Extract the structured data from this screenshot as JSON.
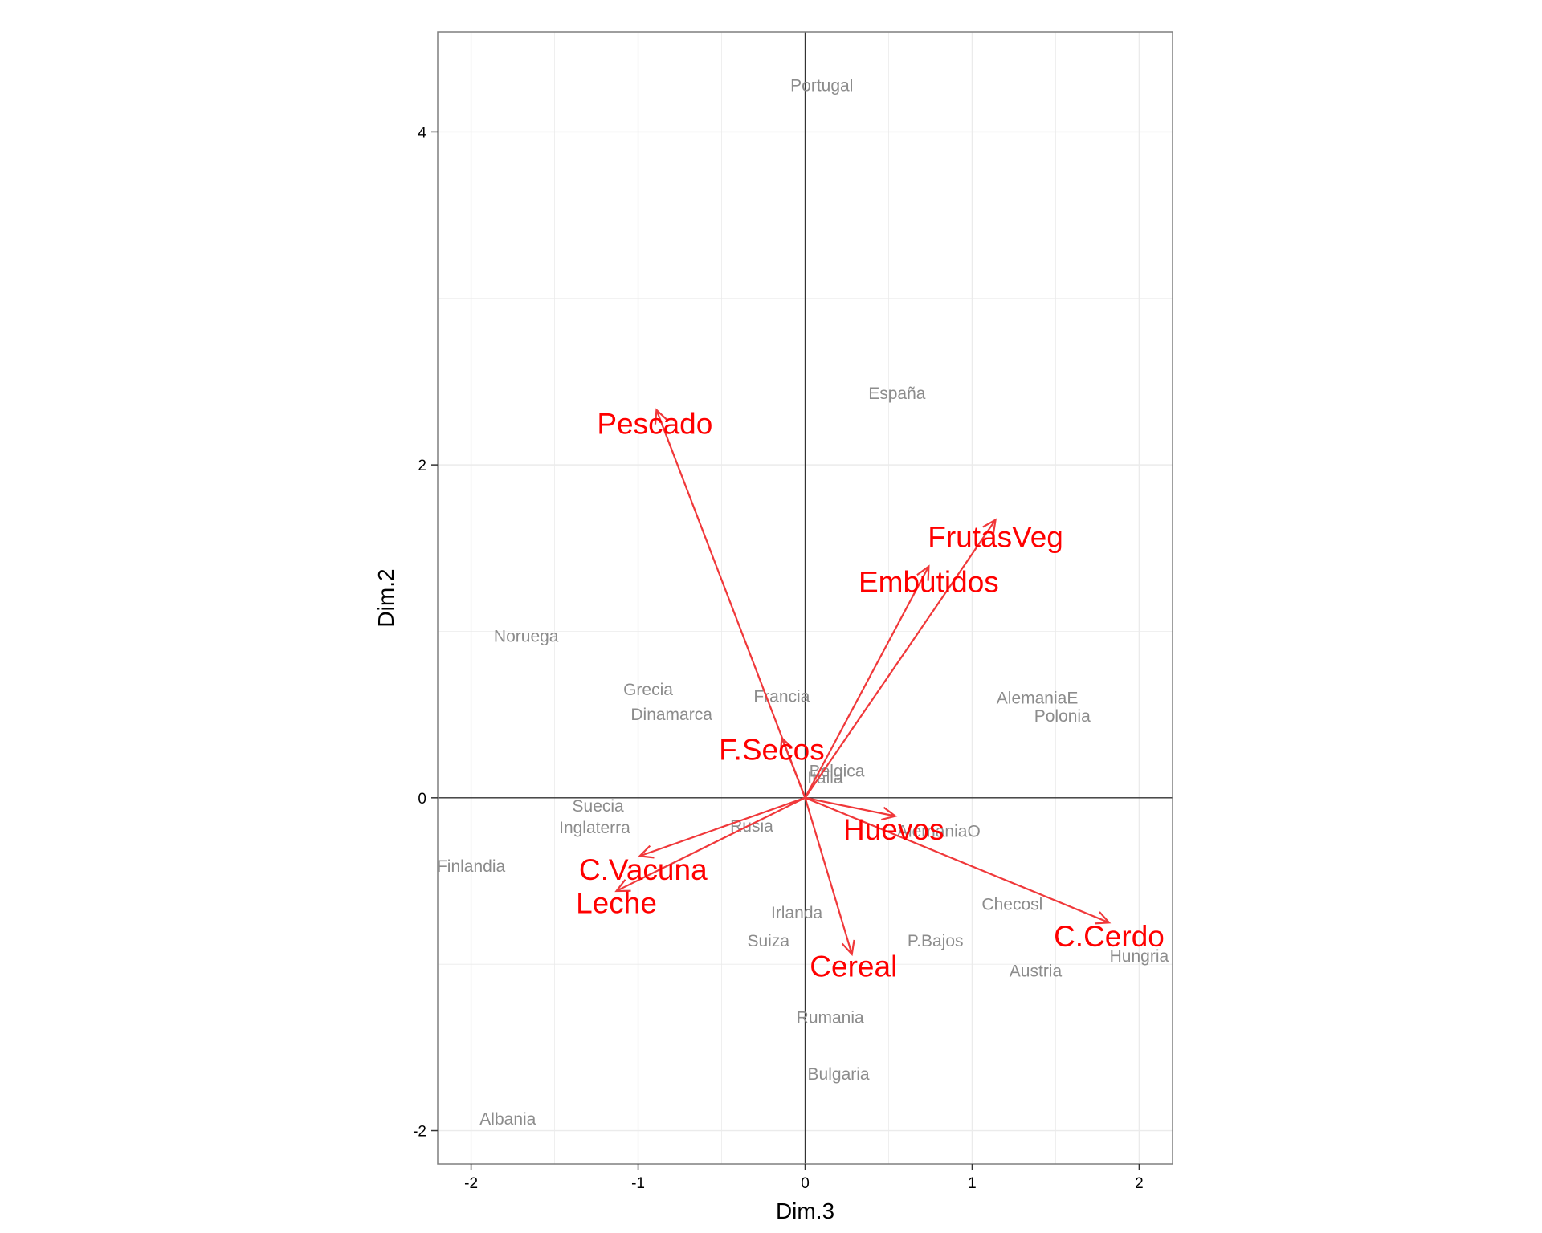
{
  "chart_data": {
    "type": "scatter",
    "xlabel": "Dim.3",
    "ylabel": "Dim.2",
    "xlim": [
      -2.2,
      2.2
    ],
    "ylim": [
      -2.2,
      4.6
    ],
    "x_ticks": [
      -2,
      -1,
      0,
      1,
      2
    ],
    "y_ticks": [
      -2,
      0,
      2,
      4
    ],
    "x_tick_labels": [
      "-2",
      "-1",
      "0",
      "1",
      "2"
    ],
    "y_tick_labels": [
      "-2",
      "0",
      "2",
      "4"
    ],
    "grid": true,
    "individuals": [
      {
        "label": "Portugal",
        "x": 0.1,
        "y": 4.28
      },
      {
        "label": "España",
        "x": 0.55,
        "y": 2.43
      },
      {
        "label": "Noruega",
        "x": -1.67,
        "y": 0.97
      },
      {
        "label": "Grecia",
        "x": -0.94,
        "y": 0.65
      },
      {
        "label": "Dinamarca",
        "x": -0.8,
        "y": 0.5
      },
      {
        "label": "Francia",
        "x": -0.14,
        "y": 0.61
      },
      {
        "label": "AlemaniaE",
        "x": 1.39,
        "y": 0.6
      },
      {
        "label": "Polonia",
        "x": 1.54,
        "y": 0.49
      },
      {
        "label": "Belgica",
        "x": 0.19,
        "y": 0.16
      },
      {
        "label": "Italia",
        "x": 0.12,
        "y": 0.12
      },
      {
        "label": "Suecia",
        "x": -1.24,
        "y": -0.05
      },
      {
        "label": "Inglaterra",
        "x": -1.26,
        "y": -0.18
      },
      {
        "label": "Rusia",
        "x": -0.32,
        "y": -0.17
      },
      {
        "label": "AlemaniaO",
        "x": 0.8,
        "y": -0.2
      },
      {
        "label": "Finlandia",
        "x": -2.0,
        "y": -0.41
      },
      {
        "label": "Checosl",
        "x": 1.24,
        "y": -0.64
      },
      {
        "label": "Irlanda",
        "x": -0.05,
        "y": -0.69
      },
      {
        "label": "P.Bajos",
        "x": 0.78,
        "y": -0.86
      },
      {
        "label": "Suiza",
        "x": -0.22,
        "y": -0.86
      },
      {
        "label": "Hungria",
        "x": 2.0,
        "y": -0.95
      },
      {
        "label": "Austria",
        "x": 1.38,
        "y": -1.04
      },
      {
        "label": "Rumania",
        "x": 0.15,
        "y": -1.32
      },
      {
        "label": "Bulgaria",
        "x": 0.2,
        "y": -1.66
      },
      {
        "label": "Albania",
        "x": -1.78,
        "y": -1.93
      }
    ],
    "variables": [
      {
        "label": "Pescado",
        "x": -0.89,
        "y": 2.33,
        "lx": -0.9,
        "ly": 2.25
      },
      {
        "label": "FrutasVeg",
        "x": 1.14,
        "y": 1.67,
        "lx": 1.14,
        "ly": 1.57
      },
      {
        "label": "Embutidos",
        "x": 0.74,
        "y": 1.39,
        "lx": 0.74,
        "ly": 1.3
      },
      {
        "label": "F.Secos",
        "x": -0.14,
        "y": 0.36,
        "lx": -0.2,
        "ly": 0.29
      },
      {
        "label": "Huevos",
        "x": 0.54,
        "y": -0.11,
        "lx": 0.53,
        "ly": -0.19
      },
      {
        "label": "C.Vacuna",
        "x": -0.99,
        "y": -0.35,
        "lx": -0.97,
        "ly": -0.43
      },
      {
        "label": "Leche",
        "x": -1.13,
        "y": -0.56,
        "lx": -1.13,
        "ly": -0.63
      },
      {
        "label": "C.Cerdo",
        "x": 1.82,
        "y": -0.75,
        "lx": 1.82,
        "ly": -0.83
      },
      {
        "label": "Cereal",
        "x": 0.28,
        "y": -0.94,
        "lx": 0.29,
        "ly": -1.01
      }
    ],
    "colors": {
      "variables": "#ff0000",
      "arrows": "#f0383a",
      "individuals": "#8c8c8c",
      "grid": "#ebebeb",
      "zero_lines": "#333333",
      "frame": "#7f7f7f"
    }
  }
}
